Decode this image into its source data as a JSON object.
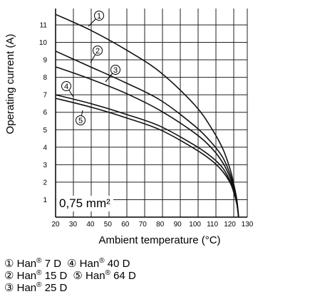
{
  "chart_data": {
    "type": "line",
    "xlabel": "Ambient temperature (°C)",
    "ylabel": "Operating current (A)",
    "xlim": [
      20,
      130
    ],
    "ylim": [
      0,
      12
    ],
    "xticks": [
      20,
      30,
      40,
      50,
      60,
      70,
      80,
      90,
      100,
      110,
      120,
      130
    ],
    "yticks": [
      1,
      2,
      3,
      4,
      5,
      6,
      7,
      8,
      9,
      10,
      11
    ],
    "grid": true,
    "annotation": "0,75 mm²",
    "series": [
      {
        "name": "① Han® 7 D",
        "marker": "①",
        "x": [
          20,
          40,
          60,
          80,
          100,
          110,
          116,
          120,
          122,
          124,
          125
        ],
        "y": [
          11.6,
          10.7,
          9.6,
          8.3,
          6.4,
          5.0,
          3.9,
          2.8,
          2.0,
          1.0,
          0.0
        ]
      },
      {
        "name": "② Han® 15 D",
        "marker": "②",
        "x": [
          20,
          40,
          60,
          80,
          100,
          110,
          116,
          120,
          122,
          124,
          125
        ],
        "y": [
          9.5,
          8.6,
          7.7,
          6.7,
          5.2,
          4.2,
          3.4,
          2.5,
          1.8,
          0.9,
          0.0
        ]
      },
      {
        "name": "③ Han® 25 D",
        "marker": "③",
        "x": [
          20,
          40,
          60,
          80,
          100,
          110,
          116,
          120,
          122,
          124,
          125
        ],
        "y": [
          8.6,
          7.9,
          7.1,
          6.1,
          4.8,
          3.9,
          3.1,
          2.3,
          1.7,
          0.85,
          0.0
        ]
      },
      {
        "name": "④ Han® 40 D",
        "marker": "④",
        "x": [
          20,
          40,
          60,
          80,
          100,
          110,
          116,
          120,
          122,
          124,
          125
        ],
        "y": [
          7.0,
          6.5,
          5.9,
          5.2,
          4.1,
          3.4,
          2.8,
          2.1,
          1.6,
          0.8,
          0.0
        ]
      },
      {
        "name": "⑤ Han® 64 D",
        "marker": "⑤",
        "x": [
          20,
          40,
          60,
          80,
          100,
          110,
          116,
          120,
          122,
          124,
          125
        ],
        "y": [
          6.8,
          6.3,
          5.7,
          5.0,
          3.9,
          3.2,
          2.6,
          2.0,
          1.5,
          0.75,
          0.0
        ]
      }
    ]
  },
  "legend": {
    "rows": [
      [
        {
          "sym": "①",
          "name": "Han",
          "reg": "®",
          "code": " 7 D"
        },
        {
          "sym": "④",
          "name": "Han",
          "reg": "®",
          "code": " 40 D"
        }
      ],
      [
        {
          "sym": "②",
          "name": "Han",
          "reg": "®",
          "code": " 15 D"
        },
        {
          "sym": "⑤",
          "name": "Han",
          "reg": "®",
          "code": " 64 D"
        }
      ],
      [
        {
          "sym": "③",
          "name": "Han",
          "reg": "®",
          "code": " 25 D"
        }
      ]
    ]
  }
}
